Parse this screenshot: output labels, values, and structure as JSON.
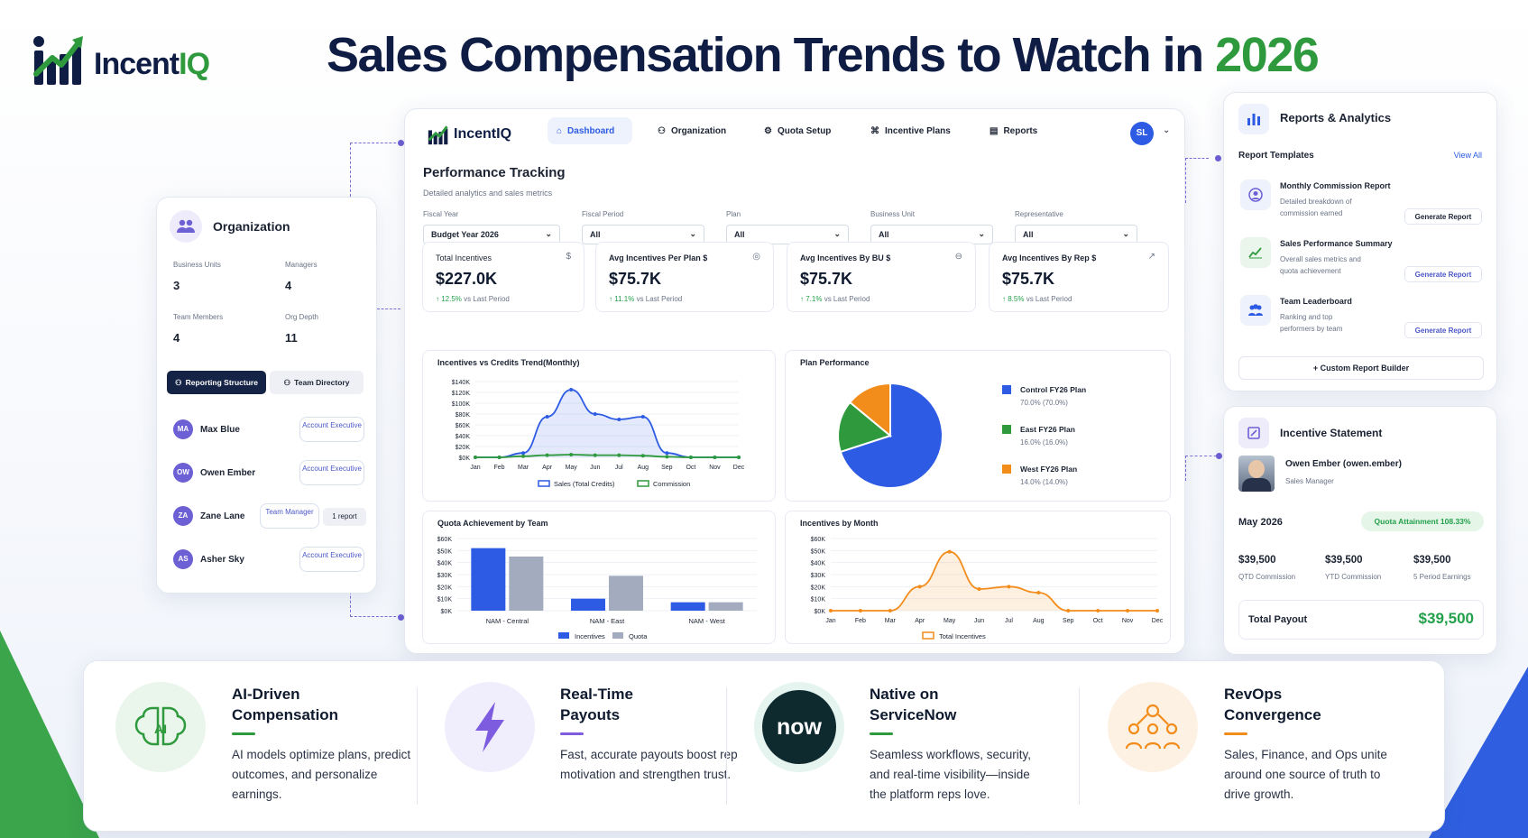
{
  "brand": {
    "name_part1": "Incent",
    "name_part2": "IQ"
  },
  "headline": {
    "text": "Sales Compensation Trends to Watch in ",
    "year": "2026"
  },
  "colors": {
    "brand_green": "#2e9a3d",
    "brand_navy": "#0f1d44",
    "accent_blue": "#2d5be3",
    "accent_purple": "#6d5fd4"
  },
  "org_card": {
    "title": "Organization",
    "stats": [
      {
        "label": "Business Units",
        "value": "3"
      },
      {
        "label": "Managers",
        "value": "4"
      },
      {
        "label": "Team Members",
        "value": "4"
      },
      {
        "label": "Org Depth",
        "value": "11"
      }
    ],
    "tabs": [
      "Reporting Structure",
      "Team Directory"
    ],
    "people": [
      {
        "initials": "MA",
        "name": "Max Blue",
        "role": "Account Executive",
        "extra": ""
      },
      {
        "initials": "OW",
        "name": "Owen Ember",
        "role": "Account Executive",
        "extra": ""
      },
      {
        "initials": "ZA",
        "name": "Zane Lane",
        "role": "Team Manager",
        "extra": "1 report"
      },
      {
        "initials": "AS",
        "name": "Asher Sky",
        "role": "Account Executive",
        "extra": ""
      }
    ]
  },
  "dashboard": {
    "brand": "IncentIQ",
    "nav": [
      "Dashboard",
      "Organization",
      "Quota Setup",
      "Incentive Plans",
      "Reports"
    ],
    "user_initials": "SL",
    "page_title": "Performance Tracking",
    "page_subtitle": "Detailed analytics and sales metrics",
    "filters": [
      {
        "label": "Fiscal Year",
        "value": "Budget Year 2026"
      },
      {
        "label": "Fiscal Period",
        "value": "All"
      },
      {
        "label": "Plan",
        "value": "All"
      },
      {
        "label": "Business Unit",
        "value": "All"
      },
      {
        "label": "Representative",
        "value": "All"
      }
    ],
    "kpis": [
      {
        "label": "Total Incentives",
        "icon": "$",
        "value": "$227.0K",
        "change": "12.5%",
        "suffix": "vs Last Period"
      },
      {
        "label": "Avg Incentives Per Plan $",
        "icon": "◎",
        "value": "$75.7K",
        "change": "11.1%",
        "suffix": "vs Last Period"
      },
      {
        "label": "Avg Incentives By BU $",
        "icon": "⊖",
        "value": "$75.7K",
        "change": "7.1%",
        "suffix": "vs Last Period"
      },
      {
        "label": "Avg Incentives By Rep $",
        "icon": "↗",
        "value": "$75.7K",
        "change": "8.5%",
        "suffix": "vs Last Period"
      }
    ]
  },
  "chart_data": [
    {
      "type": "line",
      "title": "Incentives vs Credits Trend(Monthly)",
      "x": [
        "Jan",
        "Feb",
        "Mar",
        "Apr",
        "May",
        "Jun",
        "Jul",
        "Aug",
        "Sep",
        "Oct",
        "Nov",
        "Dec"
      ],
      "yticks": [
        "$140K",
        "$120K",
        "$100K",
        "$80K",
        "$60K",
        "$40K",
        "$20K",
        "$0K"
      ],
      "ylim": [
        0,
        140
      ],
      "series": [
        {
          "name": "Sales (Total Credits)",
          "color": "#2d5be3",
          "values": [
            0,
            0,
            8,
            75,
            125,
            80,
            70,
            75,
            8,
            0,
            0,
            0
          ]
        },
        {
          "name": "Commission",
          "color": "#2e9a3d",
          "values": [
            0,
            0,
            2,
            4,
            5,
            4,
            4,
            3,
            1,
            0,
            0,
            0
          ]
        }
      ]
    },
    {
      "type": "pie",
      "title": "Plan Performance",
      "slices": [
        {
          "name": "Control FY26 Plan",
          "pct_label": "70.0% (70.0%)",
          "value": 70,
          "color": "#2d5be3"
        },
        {
          "name": "East FY26 Plan",
          "pct_label": "16.0% (16.0%)",
          "value": 16,
          "color": "#2e9a3d"
        },
        {
          "name": "West FY26 Plan",
          "pct_label": "14.0% (14.0%)",
          "value": 14,
          "color": "#f28c1b"
        }
      ]
    },
    {
      "type": "bar",
      "title": "Quota Achievement by Team",
      "categories": [
        "NAM - Central",
        "NAM - East",
        "NAM - West"
      ],
      "yticks": [
        "$60K",
        "$50K",
        "$40K",
        "$30K",
        "$20K",
        "$10K",
        "$0K"
      ],
      "ylim": [
        0,
        60
      ],
      "series": [
        {
          "name": "Incentives",
          "color": "#2d5be3",
          "values": [
            52,
            10,
            7
          ]
        },
        {
          "name": "Quota",
          "color": "#a3abbe",
          "values": [
            45,
            29,
            7
          ]
        }
      ]
    },
    {
      "type": "area",
      "title": "Incentives by Month",
      "x": [
        "Jan",
        "Feb",
        "Mar",
        "Apr",
        "May",
        "Jun",
        "Jul",
        "Aug",
        "Sep",
        "Oct",
        "Nov",
        "Dec"
      ],
      "yticks": [
        "$60K",
        "$50K",
        "$40K",
        "$30K",
        "$20K",
        "$10K",
        "$0K"
      ],
      "ylim": [
        0,
        60
      ],
      "series": [
        {
          "name": "Total Incentives",
          "color": "#f28c1b",
          "values": [
            0,
            0,
            0,
            20,
            49,
            18,
            20,
            15,
            0,
            0,
            0,
            0
          ]
        }
      ]
    }
  ],
  "reports_card": {
    "title": "Reports & Analytics",
    "section": "Report Templates",
    "view_all": "View All",
    "templates": [
      {
        "title": "Monthly Commission Report",
        "desc": "Detailed breakdown of commission earned",
        "button": "Generate Report"
      },
      {
        "title": "Sales Performance Summary",
        "desc": "Overall sales metrics and quota achievement",
        "button": "Generate Report"
      },
      {
        "title": "Team Leaderboard",
        "desc": "Ranking and top performers by team",
        "button": "Generate Report"
      }
    ],
    "builder": "+ Custom Report Builder"
  },
  "statement_card": {
    "title": "Incentive Statement",
    "person_name": "Owen Ember (owen.ember)",
    "person_role": "Sales Manager",
    "period": "May 2026",
    "attainment": "Quota Attainment 108.33%",
    "metrics": [
      {
        "value": "$39,500",
        "label": "QTD Commission"
      },
      {
        "value": "$39,500",
        "label": "YTD Commission"
      },
      {
        "value": "$39,500",
        "label": "5 Period Earnings"
      }
    ],
    "total_label": "Total Payout",
    "total_value": "$39,500"
  },
  "features": [
    {
      "title_line1": "AI-Driven",
      "title_line2": "Compensation",
      "icon": "ai-brain-icon",
      "desc": "AI models optimize plans, predict outcomes, and personalize earnings."
    },
    {
      "title_line1": "Real-Time",
      "title_line2": "Payouts",
      "icon": "lightning-icon",
      "desc": "Fast, accurate payouts boost rep motivation and strengthen trust."
    },
    {
      "title_line1": "Native on",
      "title_line2": "ServiceNow",
      "icon": "now-logo",
      "logo_text": "now",
      "desc": "Seamless workflows, security, and real-time visibility—inside the platform reps love."
    },
    {
      "title_line1": "RevOps",
      "title_line2": "Convergence",
      "icon": "team-network-icon",
      "desc": "Sales, Finance, and Ops unite around one source of truth to drive growth."
    }
  ]
}
